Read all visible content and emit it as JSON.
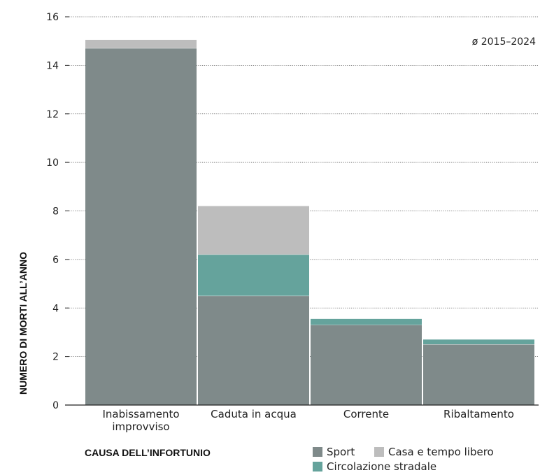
{
  "chart_data": {
    "type": "bar",
    "stacked": true,
    "categories": [
      "Inabissamento improvviso",
      "Caduta in acqua",
      "Corrente",
      "Ribaltamento"
    ],
    "category_lines": [
      [
        "Inabissamento",
        "improvviso"
      ],
      [
        "Caduta in acqua"
      ],
      [
        "Corrente"
      ],
      [
        "Ribaltamento"
      ]
    ],
    "series": [
      {
        "name": "Sport",
        "color": "#7f8a8a",
        "values": [
          14.7,
          4.5,
          3.3,
          2.5
        ]
      },
      {
        "name": "Circolazione stradale",
        "color": "#65a39c",
        "values": [
          0,
          1.7,
          0.25,
          0.2
        ]
      },
      {
        "name": "Casa e tempo libero",
        "color": "#bdbdbd",
        "values": [
          0.35,
          2.0,
          0,
          0
        ]
      }
    ],
    "ylabel": "NUMERO DI MORTI ALL’ANNO",
    "xlabel": "CAUSA DELL’INFORTUNIO",
    "ylim": [
      0,
      16
    ],
    "yticks": [
      0,
      2,
      4,
      6,
      8,
      10,
      12,
      14,
      16
    ],
    "annotation": "ø 2015–2024",
    "grid": true,
    "legend_position": "bottom-right"
  }
}
